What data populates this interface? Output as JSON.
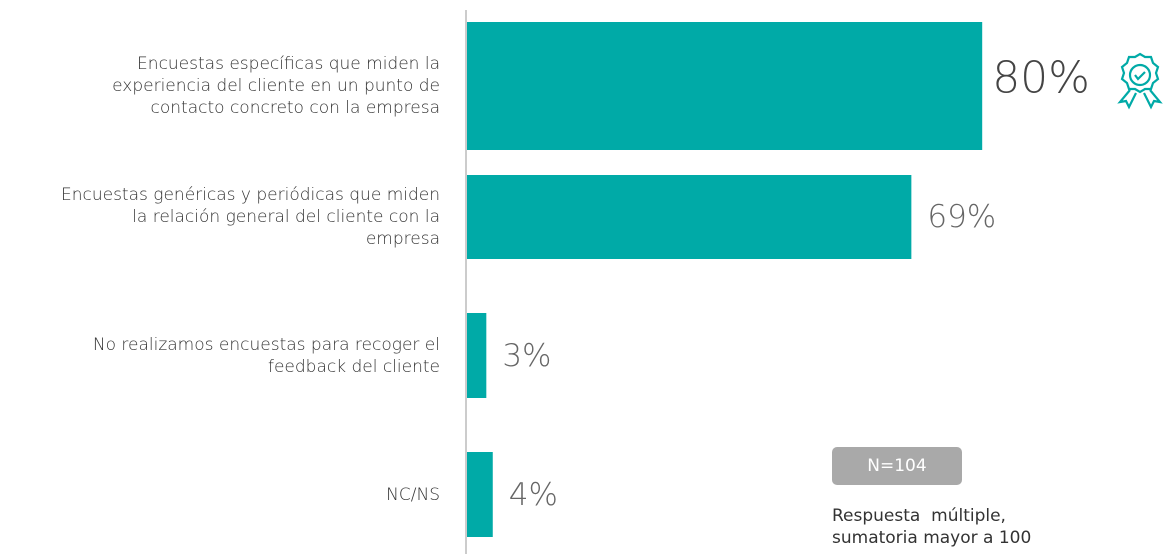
{
  "chart_data": {
    "type": "bar",
    "orientation": "horizontal",
    "categories": [
      "Encuestas específicas que miden la experiencia del cliente en un punto de contacto concreto con la empresa",
      "Encuestas genéricas y periódicas que miden la relación general del cliente con la empresa",
      "No realizamos encuestas para recoger el feedback del cliente",
      "NC/NS"
    ],
    "values": [
      80,
      69,
      3,
      4
    ],
    "value_labels": [
      "80%",
      "69%",
      "3%",
      "4%"
    ],
    "color": "#00aaa7",
    "xlim": [
      0,
      100
    ],
    "annotations": [
      "N=104",
      "Respuesta  múltiple, sumatoria mayor a 100"
    ]
  }
}
